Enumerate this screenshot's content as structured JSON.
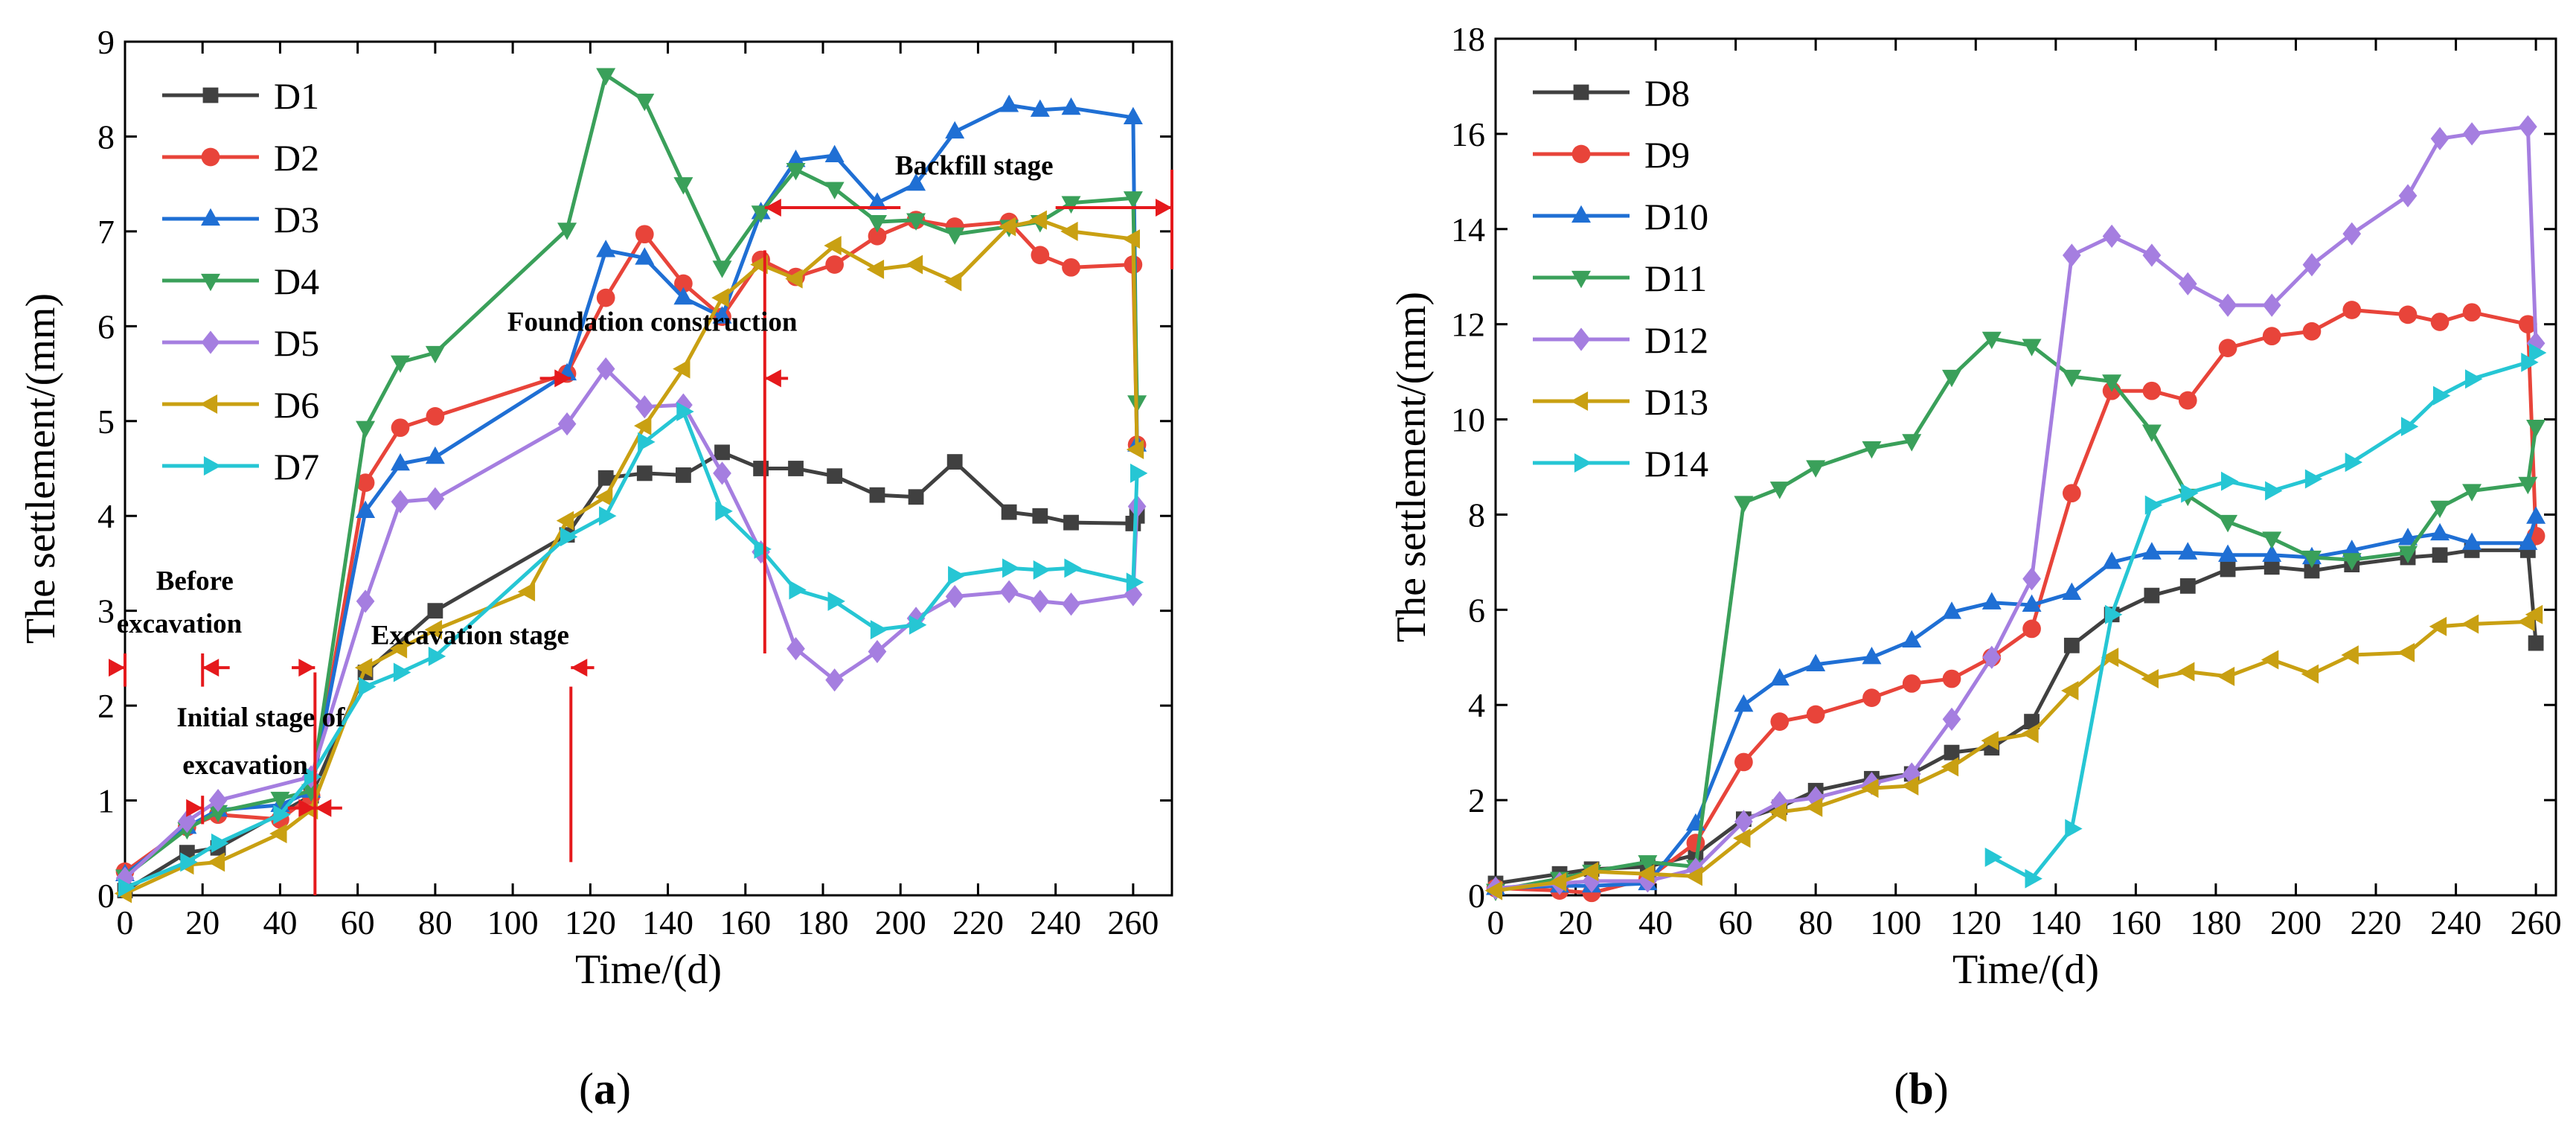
{
  "chart_data": [
    {
      "type": "line",
      "panel_label": "a",
      "xlabel": "Time/(d)",
      "ylabel": "The settlement/(mm)",
      "xlim": [
        0,
        270
      ],
      "ylim": [
        0,
        9
      ],
      "xticks": [
        0,
        20,
        40,
        60,
        80,
        100,
        120,
        140,
        160,
        180,
        200,
        220,
        240,
        260
      ],
      "yticks": [
        0,
        1,
        2,
        3,
        4,
        5,
        6,
        7,
        8,
        9
      ],
      "legend_position": "top-left",
      "series": [
        {
          "name": "D1",
          "color": "#404040",
          "marker": "square",
          "x": [
            0,
            16,
            24,
            48,
            62,
            80,
            114,
            124,
            134,
            144,
            154,
            164,
            173,
            183,
            194,
            204,
            214,
            228,
            236,
            244,
            260,
            261
          ],
          "y": [
            0.05,
            0.45,
            0.5,
            1.05,
            2.35,
            3.0,
            3.8,
            4.4,
            4.45,
            4.43,
            4.67,
            4.5,
            4.5,
            4.42,
            4.22,
            4.2,
            4.57,
            4.04,
            4.0,
            3.93,
            3.92,
            4.0
          ]
        },
        {
          "name": "D2",
          "color": "#e8443a",
          "marker": "circle",
          "x": [
            0,
            16,
            24,
            40,
            48,
            62,
            71,
            80,
            114,
            124,
            134,
            144,
            154,
            164,
            173,
            183,
            194,
            204,
            214,
            228,
            236,
            244,
            260,
            261
          ],
          "y": [
            0.25,
            0.72,
            0.85,
            0.8,
            1.05,
            4.35,
            4.93,
            5.05,
            5.5,
            6.3,
            6.97,
            6.45,
            6.1,
            6.7,
            6.52,
            6.65,
            6.95,
            7.12,
            7.05,
            7.1,
            6.75,
            6.62,
            6.65,
            4.75
          ]
        },
        {
          "name": "D3",
          "color": "#1f6fd4",
          "marker": "triangle-up",
          "x": [
            0,
            16,
            24,
            40,
            48,
            62,
            71,
            80,
            114,
            124,
            134,
            144,
            154,
            164,
            173,
            183,
            194,
            204,
            214,
            228,
            236,
            244,
            260,
            261
          ],
          "y": [
            0.22,
            0.72,
            0.9,
            0.95,
            1.1,
            4.05,
            4.55,
            4.62,
            5.5,
            6.8,
            6.72,
            6.3,
            6.1,
            7.2,
            7.75,
            7.8,
            7.3,
            7.5,
            8.05,
            8.33,
            8.28,
            8.3,
            8.2,
            4.75
          ]
        },
        {
          "name": "D4",
          "color": "#3aa05a",
          "marker": "triangle-down",
          "x": [
            0,
            16,
            24,
            40,
            48,
            62,
            71,
            80,
            114,
            124,
            134,
            144,
            154,
            164,
            173,
            183,
            194,
            204,
            214,
            228,
            236,
            244,
            260,
            261
          ],
          "y": [
            0.2,
            0.7,
            0.88,
            1.02,
            1.1,
            4.93,
            5.62,
            5.72,
            7.02,
            8.65,
            8.38,
            7.5,
            6.62,
            7.2,
            7.65,
            7.45,
            7.1,
            7.12,
            6.97,
            7.05,
            7.1,
            7.3,
            7.35,
            5.2
          ]
        },
        {
          "name": "D5",
          "color": "#a57ee0",
          "marker": "diamond",
          "x": [
            0,
            16,
            24,
            48,
            62,
            71,
            80,
            114,
            124,
            134,
            144,
            154,
            164,
            173,
            183,
            194,
            204,
            214,
            228,
            236,
            244,
            260,
            261
          ],
          "y": [
            0.18,
            0.78,
            1.0,
            1.25,
            3.1,
            4.15,
            4.18,
            4.97,
            5.55,
            5.15,
            5.17,
            4.45,
            3.62,
            2.6,
            2.27,
            2.57,
            2.92,
            3.15,
            3.2,
            3.1,
            3.07,
            3.17,
            4.1
          ]
        },
        {
          "name": "D6",
          "color": "#c9a012",
          "marker": "triangle-left",
          "x": [
            0,
            16,
            24,
            40,
            48,
            62,
            71,
            80,
            104,
            114,
            124,
            134,
            144,
            154,
            164,
            173,
            183,
            194,
            204,
            214,
            228,
            236,
            244,
            260,
            261
          ],
          "y": [
            0.02,
            0.32,
            0.35,
            0.65,
            0.9,
            2.4,
            2.6,
            2.8,
            3.2,
            3.95,
            4.2,
            4.95,
            5.55,
            6.3,
            6.65,
            6.5,
            6.85,
            6.6,
            6.65,
            6.47,
            7.05,
            7.12,
            7.0,
            6.92,
            4.7
          ]
        },
        {
          "name": "D7",
          "color": "#26c6d4",
          "marker": "triangle-right",
          "x": [
            0,
            16,
            24,
            40,
            48,
            62,
            71,
            80,
            114,
            124,
            134,
            144,
            154,
            164,
            173,
            183,
            194,
            204,
            214,
            228,
            236,
            244,
            260,
            261
          ],
          "y": [
            0.08,
            0.35,
            0.55,
            0.85,
            1.25,
            2.2,
            2.35,
            2.52,
            3.78,
            4.0,
            4.78,
            5.1,
            4.05,
            3.65,
            3.22,
            3.1,
            2.8,
            2.85,
            3.37,
            3.45,
            3.43,
            3.45,
            3.3,
            4.45
          ]
        }
      ],
      "annotations": [
        {
          "text": "Before",
          "x": 18,
          "y": 3.22
        },
        {
          "text": "excavation",
          "x": 14,
          "y": 2.77
        },
        {
          "text": "Initial stage of",
          "x": 35,
          "y": 1.78
        },
        {
          "text": "excavation",
          "x": 31,
          "y": 1.28
        },
        {
          "text": "Excavation stage",
          "x": 89,
          "y": 2.65
        },
        {
          "text": "Foundation construction",
          "x": 136,
          "y": 5.95
        },
        {
          "text": "Backfill stage",
          "x": 219,
          "y": 7.6
        }
      ],
      "stage_boundaries_days": [
        0,
        20,
        49,
        115,
        165,
        270
      ]
    },
    {
      "type": "line",
      "panel_label": "b",
      "xlabel": "Time/(d)",
      "ylabel": "The settlement/(mm)",
      "xlim": [
        0,
        265
      ],
      "ylim": [
        0,
        18
      ],
      "xticks": [
        0,
        20,
        40,
        60,
        80,
        100,
        120,
        140,
        160,
        180,
        200,
        220,
        240,
        260
      ],
      "yticks": [
        0,
        2,
        4,
        6,
        8,
        10,
        12,
        14,
        16,
        18
      ],
      "legend_position": "top-left",
      "series": [
        {
          "name": "D8",
          "color": "#404040",
          "marker": "square",
          "x": [
            0,
            16,
            24,
            38,
            50,
            62,
            71,
            80,
            94,
            104,
            114,
            124,
            134,
            144,
            154,
            164,
            173,
            183,
            194,
            204,
            214,
            228,
            236,
            244,
            258,
            260
          ],
          "y": [
            0.25,
            0.45,
            0.55,
            0.6,
            0.85,
            1.6,
            1.85,
            2.2,
            2.45,
            2.55,
            3.0,
            3.1,
            3.65,
            5.25,
            5.9,
            6.3,
            6.5,
            6.85,
            6.9,
            6.82,
            6.95,
            7.1,
            7.15,
            7.25,
            7.25,
            5.3
          ]
        },
        {
          "name": "D9",
          "color": "#e8443a",
          "marker": "circle",
          "x": [
            0,
            16,
            24,
            38,
            50,
            62,
            71,
            80,
            94,
            104,
            114,
            124,
            134,
            144,
            154,
            164,
            173,
            183,
            194,
            204,
            214,
            228,
            236,
            244,
            258,
            260
          ],
          "y": [
            0.15,
            0.1,
            0.05,
            0.35,
            1.1,
            2.8,
            3.65,
            3.8,
            4.15,
            4.45,
            4.55,
            5.0,
            5.6,
            8.45,
            10.6,
            10.6,
            10.4,
            11.5,
            11.75,
            11.85,
            12.3,
            12.2,
            12.05,
            12.25,
            12.0,
            7.55
          ]
        },
        {
          "name": "D10",
          "color": "#1f6fd4",
          "marker": "triangle-up",
          "x": [
            0,
            16,
            24,
            38,
            50,
            62,
            71,
            80,
            94,
            104,
            114,
            124,
            134,
            144,
            154,
            164,
            173,
            183,
            194,
            204,
            214,
            228,
            236,
            244,
            258,
            260
          ],
          "y": [
            0.15,
            0.2,
            0.2,
            0.25,
            1.5,
            4.0,
            4.55,
            4.85,
            5.0,
            5.35,
            5.95,
            6.15,
            6.1,
            6.35,
            7.0,
            7.2,
            7.2,
            7.15,
            7.15,
            7.1,
            7.25,
            7.5,
            7.6,
            7.4,
            7.4,
            7.95
          ]
        },
        {
          "name": "D11",
          "color": "#3aa05a",
          "marker": "triangle-down",
          "x": [
            0,
            16,
            24,
            38,
            50,
            62,
            71,
            80,
            94,
            104,
            114,
            124,
            134,
            144,
            154,
            164,
            173,
            183,
            194,
            204,
            214,
            228,
            236,
            244,
            258,
            260
          ],
          "y": [
            0.1,
            0.35,
            0.5,
            0.7,
            0.6,
            8.25,
            8.55,
            9.0,
            9.4,
            9.55,
            10.9,
            11.7,
            11.55,
            10.9,
            10.8,
            9.75,
            8.4,
            7.85,
            7.5,
            7.1,
            7.05,
            7.2,
            8.15,
            8.5,
            8.65,
            9.85
          ]
        },
        {
          "name": "D12",
          "color": "#a57ee0",
          "marker": "diamond",
          "x": [
            0,
            16,
            24,
            38,
            50,
            62,
            71,
            80,
            94,
            104,
            114,
            124,
            134,
            144,
            154,
            164,
            173,
            183,
            194,
            204,
            214,
            228,
            236,
            244,
            258,
            260
          ],
          "y": [
            0.15,
            0.25,
            0.3,
            0.3,
            0.55,
            1.55,
            1.95,
            2.05,
            2.35,
            2.55,
            3.7,
            5.0,
            6.65,
            13.45,
            13.85,
            13.45,
            12.85,
            12.4,
            12.4,
            13.25,
            13.9,
            14.7,
            15.9,
            16.0,
            16.15,
            11.6
          ]
        },
        {
          "name": "D13",
          "color": "#c9a012",
          "marker": "triangle-left",
          "x": [
            0,
            16,
            24,
            38,
            50,
            62,
            71,
            80,
            94,
            104,
            114,
            124,
            134,
            144,
            154,
            164,
            173,
            183,
            194,
            204,
            214,
            228,
            236,
            244,
            258,
            260
          ],
          "y": [
            0.1,
            0.28,
            0.5,
            0.45,
            0.4,
            1.2,
            1.75,
            1.85,
            2.25,
            2.3,
            2.7,
            3.25,
            3.4,
            4.3,
            5.0,
            4.55,
            4.7,
            4.6,
            4.95,
            4.65,
            5.05,
            5.1,
            5.65,
            5.7,
            5.75,
            5.9
          ]
        },
        {
          "name": "D14",
          "color": "#26c6d4",
          "marker": "triangle-right",
          "x": [
            124,
            134,
            144,
            154,
            164,
            173,
            183,
            194,
            204,
            214,
            228,
            236,
            244,
            258,
            260
          ],
          "y": [
            0.8,
            0.35,
            1.4,
            5.9,
            8.2,
            8.45,
            8.7,
            8.5,
            8.75,
            9.1,
            9.85,
            10.5,
            10.85,
            11.2,
            11.4
          ]
        }
      ]
    }
  ],
  "panels": {
    "a": {
      "label_prefix": "(",
      "label": "a",
      "label_suffix": ")"
    },
    "b": {
      "label_prefix": "(",
      "label": "b",
      "label_suffix": ")"
    }
  }
}
